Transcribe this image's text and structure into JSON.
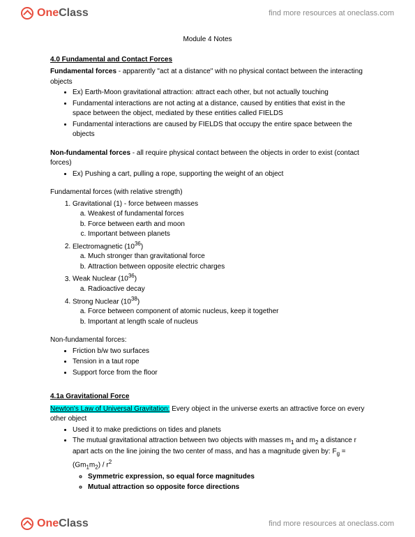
{
  "header": {
    "logo_one": "One",
    "logo_class": "Class",
    "tagline": "find more resources at oneclass.com"
  },
  "footer": {
    "logo_one": "One",
    "logo_class": "Class",
    "tagline": "find more resources at oneclass.com"
  },
  "doc": {
    "title": "Module 4 Notes",
    "sec40_head": "4.0 Fundamental and Contact Forces",
    "fundforces_label": "Fundamental forces",
    "fundforces_def": " - apparently \"act at a distance\" with no physical contact between the interacting objects",
    "b1_1": "Ex) Earth-Moon gravitational attraction: attract each other, but not actually touching",
    "b1_2": "Fundamental interactions are not acting at a distance, caused by entities that exist in the space between the object, mediated by these entities called FIELDS",
    "b1_3": "Fundamental interactions are caused by FIELDS that occupy the entire space between the objects",
    "nonfund_label": "Non-fundamental forces",
    "nonfund_def": " - all require physical contact between the objects in order to exist (contact forces)",
    "b2_1": "Ex) Pushing a cart, pulling a rope, supporting the weight of an object",
    "fundlist_head": "Fundamental forces (with relative strength)",
    "n1": "Gravitational (1) - force between masses",
    "n1a": "Weakest of fundamental forces",
    "n1b": "Force between earth and moon",
    "n1c": "Important between planets",
    "n2_pre": "Electromagnetic (10",
    "n2_sup": "36",
    "n2_post": ")",
    "n2a": "Much stronger than gravitational force",
    "n2b": "Attraction between opposite electric charges",
    "n3_pre": "Weak Nuclear (10",
    "n3_sup": "36",
    "n3_post": ")",
    "n3a": "Radioactive decay",
    "n4_pre": "Strong Nuclear (10",
    "n4_sup": "38",
    "n4_post": ")",
    "n4a": "Force between component of atomic nucleus, keep it together",
    "n4b": "Important at length scale of nucleus",
    "nfund_head": "Non-fundamental forces:",
    "nf1": "Friction b/w two surfaces",
    "nf2": "Tension in a taut rope",
    "nf3": "Support force from the floor",
    "sec41_head": "4.1a Gravitational Force",
    "newton_hl": "Newton's Law of Universal Gravitation:",
    "newton_rest": " Every object in the universe exerts an attractive force on every other object",
    "g1": "Used it to make predictions on tides and planets",
    "g2_pre": "The mutual gravitational attraction between two objects with masses m",
    "g2_sub1": "1",
    "g2_mid": " and m",
    "g2_sub2": "2",
    "g2_mid2": " a distance r apart acts on the line joining the two center of mass, and has a magnitude given by: F",
    "g2_subg": "g",
    "g2_eq": " = (Gm",
    "g2_sub1b": "1",
    "g2_mid3": "m",
    "g2_sub2b": "2",
    "g2_end": ") / r",
    "g2_sup2": "2",
    "g2s1": "Symmetric expression, so equal force magnitudes",
    "g2s2": "Mutual attraction so opposite force directions"
  }
}
